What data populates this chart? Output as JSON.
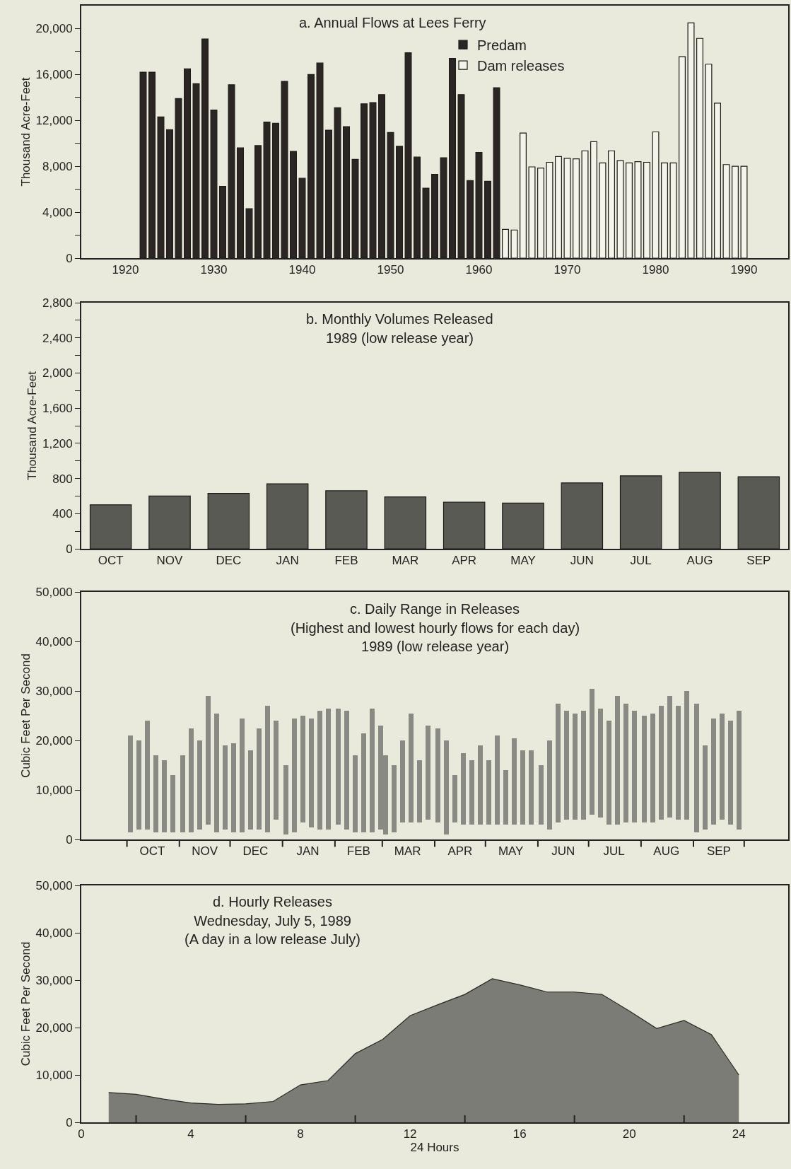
{
  "chart_data": [
    {
      "type": "bar",
      "title": "a. Annual Flows at Lees Ferry",
      "ylabel": "Thousand Acre-Feet",
      "legend": "top",
      "series": [
        {
          "name": "Predam",
          "color": "#2b2624",
          "x": [
            1922,
            1923,
            1924,
            1925,
            1926,
            1927,
            1928,
            1929,
            1930,
            1931,
            1932,
            1933,
            1934,
            1935,
            1936,
            1937,
            1938,
            1939,
            1940,
            1941,
            1942,
            1943,
            1944,
            1945,
            1946,
            1947,
            1948,
            1949,
            1950,
            1951,
            1952,
            1953,
            1954,
            1955,
            1956,
            1957,
            1958,
            1959,
            1960,
            1961,
            1962
          ],
          "values": [
            16200,
            16200,
            12300,
            11200,
            13900,
            16500,
            15200,
            19100,
            12900,
            6250,
            15100,
            9600,
            4300,
            9800,
            11850,
            11750,
            15400,
            9300,
            6950,
            16000,
            17000,
            11150,
            13100,
            11450,
            8600,
            13450,
            13550,
            14250,
            10950,
            9750,
            17900,
            8800,
            6100,
            7300,
            8750,
            17400,
            14250,
            6750,
            9200,
            6700,
            14850
          ]
        },
        {
          "name": "Dam releases",
          "color": "#f4f4ea",
          "x": [
            1963,
            1964,
            1965,
            1966,
            1967,
            1968,
            1969,
            1970,
            1971,
            1972,
            1973,
            1974,
            1975,
            1976,
            1977,
            1978,
            1979,
            1980,
            1981,
            1982,
            1983,
            1984,
            1985,
            1986,
            1987,
            1988,
            1989,
            1990
          ],
          "values": [
            2500,
            2450,
            10900,
            7950,
            7850,
            8350,
            8850,
            8700,
            8650,
            9350,
            10150,
            8300,
            9350,
            8500,
            8300,
            8400,
            8350,
            11000,
            8300,
            8300,
            17550,
            20500,
            19150,
            16900,
            13500,
            8150,
            8000,
            8000
          ]
        }
      ],
      "xlim": [
        1915,
        1995
      ],
      "xticks": [
        1920,
        1930,
        1940,
        1950,
        1960,
        1970,
        1980,
        1990
      ],
      "ylim": [
        0,
        22000
      ],
      "yticks": [
        0,
        {
          "value": 2000,
          "label": null
        },
        {
          "value": 4000,
          "label": "4,000"
        },
        {
          "value": 6000,
          "label": null
        },
        {
          "value": 8000,
          "label": "8,000"
        },
        {
          "value": 10000,
          "label": null
        },
        {
          "value": 12000,
          "label": "12,000"
        },
        {
          "value": 14000,
          "label": null
        },
        {
          "value": 16000,
          "label": "16,000"
        },
        {
          "value": 18000,
          "label": null
        },
        {
          "value": 20000,
          "label": "20,000"
        }
      ]
    },
    {
      "type": "bar",
      "title": "b. Monthly Volumes Released",
      "subtitle": "1989 (low release year)",
      "ylabel": "Thousand Acre-Feet",
      "color": "#5a5a55",
      "categories": [
        "OCT",
        "NOV",
        "DEC",
        "JAN",
        "FEB",
        "MAR",
        "APR",
        "MAY",
        "JUN",
        "JUL",
        "AUG",
        "SEP"
      ],
      "values": [
        500,
        600,
        630,
        740,
        660,
        590,
        530,
        520,
        750,
        830,
        870,
        820
      ],
      "ylim": [
        0,
        2800
      ],
      "yticks": [
        0,
        {
          "value": 200,
          "label": null
        },
        400,
        {
          "value": 600,
          "label": null
        },
        800,
        {
          "value": 1000,
          "label": null
        },
        {
          "value": 1200,
          "label": "1,200"
        },
        {
          "value": 1400,
          "label": null
        },
        {
          "value": 1600,
          "label": "1,600"
        },
        {
          "value": 1800,
          "label": null
        },
        {
          "value": 2000,
          "label": "2,000"
        },
        {
          "value": 2200,
          "label": null
        },
        {
          "value": 2400,
          "label": "2,400"
        },
        {
          "value": 2600,
          "label": null
        },
        {
          "value": 2800,
          "label": "2,800"
        }
      ]
    },
    {
      "type": "bar",
      "title": "c. Daily Range in Releases",
      "subtitle": "(Highest and lowest hourly flows for each day)\n1989 (low release year)",
      "ylabel": "Cubic Feet Per Second",
      "color": "#8a8a84",
      "x": [
        "1988-10-03",
        "1988-10-08",
        "1988-10-13",
        "1988-10-18",
        "1988-10-23",
        "1988-10-28",
        "1988-11-03",
        "1988-11-08",
        "1988-11-13",
        "1988-11-18",
        "1988-11-23",
        "1988-11-28",
        "1988-12-03",
        "1988-12-08",
        "1988-12-13",
        "1988-12-18",
        "1988-12-23",
        "1988-12-28",
        "1989-01-03",
        "1989-01-08",
        "1989-01-13",
        "1989-01-18",
        "1989-01-23",
        "1989-01-28",
        "1989-02-03",
        "1989-02-08",
        "1989-02-13",
        "1989-02-18",
        "1989-02-23",
        "1989-02-28",
        "1989-03-03",
        "1989-03-08",
        "1989-03-13",
        "1989-03-18",
        "1989-03-23",
        "1989-03-28",
        "1989-04-03",
        "1989-04-08",
        "1989-04-13",
        "1989-04-18",
        "1989-04-23",
        "1989-04-28",
        "1989-05-03",
        "1989-05-08",
        "1989-05-13",
        "1989-05-18",
        "1989-05-23",
        "1989-05-28",
        "1989-06-03",
        "1989-06-08",
        "1989-06-13",
        "1989-06-18",
        "1989-06-23",
        "1989-06-28",
        "1989-07-03",
        "1989-07-08",
        "1989-07-13",
        "1989-07-18",
        "1989-07-23",
        "1989-07-28",
        "1989-08-03",
        "1989-08-08",
        "1989-08-13",
        "1989-08-18",
        "1989-08-23",
        "1989-08-28",
        "1989-09-03",
        "1989-09-08",
        "1989-09-13",
        "1989-09-18",
        "1989-09-23",
        "1989-09-28"
      ],
      "base": [
        1500,
        2000,
        2000,
        1500,
        1500,
        1500,
        1500,
        1500,
        2000,
        3000,
        1500,
        2000,
        1500,
        1500,
        2000,
        2000,
        1500,
        4000,
        1000,
        1500,
        3500,
        2500,
        2000,
        2000,
        3000,
        2000,
        1500,
        1500,
        1500,
        2000,
        1000,
        1500,
        3500,
        3500,
        3500,
        4000,
        3500,
        1000,
        3500,
        3000,
        3000,
        3000,
        3000,
        3000,
        3000,
        3000,
        3000,
        3000,
        3000,
        2000,
        3500,
        4000,
        4000,
        4000,
        5000,
        4500,
        3000,
        3000,
        3500,
        3500,
        3500,
        3500,
        4000,
        4500,
        4000,
        4000,
        1500,
        2000,
        3000,
        4000,
        3000,
        2000
      ],
      "values": [
        19500,
        18000,
        22000,
        15500,
        14500,
        11500,
        15500,
        21000,
        18000,
        26000,
        24000,
        17000,
        18000,
        23000,
        16000,
        20500,
        25500,
        20000,
        14000,
        23000,
        21500,
        22000,
        24000,
        24500,
        23500,
        24000,
        15500,
        20000,
        25000,
        21000,
        16000,
        13500,
        16500,
        22000,
        12500,
        19000,
        19000,
        19000,
        9500,
        14500,
        13000,
        16000,
        13000,
        18000,
        11000,
        17500,
        15000,
        15000,
        12000,
        18000,
        24000,
        22000,
        21500,
        22000,
        25500,
        22000,
        21000,
        26000,
        24000,
        22500,
        21500,
        22000,
        23000,
        24500,
        23000,
        26000,
        26000,
        17000,
        21500,
        21500,
        21000,
        24000
      ],
      "xlim": [
        "1988-09-04",
        "1989-10-27"
      ],
      "xticks": [
        {
          "value": "1988-10-01",
          "label": null
        },
        {
          "value": "1988-10-16",
          "label": "OCT"
        },
        {
          "value": "1988-11-01",
          "label": null
        },
        {
          "value": "1988-11-16",
          "label": "NOV"
        },
        {
          "value": "1988-12-01",
          "label": null
        },
        {
          "value": "1988-12-16",
          "label": "DEC"
        },
        {
          "value": "1989-01-01",
          "label": null
        },
        {
          "value": "1989-01-16",
          "label": "JAN"
        },
        {
          "value": "1989-02-01",
          "label": null
        },
        {
          "value": "1989-02-15",
          "label": "FEB"
        },
        {
          "value": "1989-03-01",
          "label": null
        },
        {
          "value": "1989-03-16",
          "label": "MAR"
        },
        {
          "value": "1989-04-01",
          "label": null
        },
        {
          "value": "1989-04-16",
          "label": "APR"
        },
        {
          "value": "1989-05-01",
          "label": null
        },
        {
          "value": "1989-05-16",
          "label": "MAY"
        },
        {
          "value": "1989-06-01",
          "label": null
        },
        {
          "value": "1989-06-16",
          "label": "JUN"
        },
        {
          "value": "1989-07-01",
          "label": null
        },
        {
          "value": "1989-07-16",
          "label": "JUL"
        },
        {
          "value": "1989-08-01",
          "label": null
        },
        {
          "value": "1989-08-16",
          "label": "AUG"
        },
        {
          "value": "1989-09-01",
          "label": null
        },
        {
          "value": "1989-09-16",
          "label": "SEP"
        },
        {
          "value": "1989-10-01",
          "label": null
        }
      ],
      "ylim": [
        0,
        50000
      ],
      "yticks": [
        0,
        {
          "value": 10000,
          "label": "10,000"
        },
        {
          "value": 20000,
          "label": "20,000"
        },
        {
          "value": 30000,
          "label": "30,000"
        },
        {
          "value": 40000,
          "label": "40,000"
        },
        {
          "value": 50000,
          "label": "50,000"
        }
      ]
    },
    {
      "type": "area",
      "title": "d. Hourly Releases",
      "subtitle": "Wednesday, July 5, 1989\n(A day in a low release July)",
      "xlabel": "24 Hours",
      "ylabel": "Cubic Feet Per Second",
      "color": "#7c7c76",
      "x": [
        1,
        2,
        3,
        4,
        5,
        6,
        7,
        8,
        9,
        10,
        11,
        12,
        13,
        14,
        15,
        16,
        17,
        18,
        19,
        20,
        21,
        22,
        23,
        24
      ],
      "values": [
        6300,
        5900,
        4900,
        4100,
        3800,
        3900,
        4400,
        7900,
        8800,
        14500,
        17500,
        22500,
        24800,
        27000,
        30300,
        29000,
        27500,
        27500,
        27000,
        23500,
        19800,
        21500,
        18500,
        10000
      ],
      "xlim": [
        0,
        25.8
      ],
      "xticks": [
        0,
        {
          "value": 2,
          "label": null
        },
        4,
        {
          "value": 6,
          "label": null
        },
        8,
        {
          "value": 10,
          "label": null
        },
        12,
        {
          "value": 14,
          "label": null
        },
        16,
        {
          "value": 18,
          "label": null
        },
        20,
        {
          "value": 22,
          "label": null
        },
        24
      ],
      "ylim": [
        0,
        50000
      ],
      "yticks": [
        0,
        {
          "value": 10000,
          "label": "10,000"
        },
        {
          "value": 20000,
          "label": "20,000"
        },
        {
          "value": 30000,
          "label": "30,000"
        },
        {
          "value": 40000,
          "label": "40,000"
        },
        {
          "value": 50000,
          "label": "50,000"
        }
      ]
    }
  ]
}
